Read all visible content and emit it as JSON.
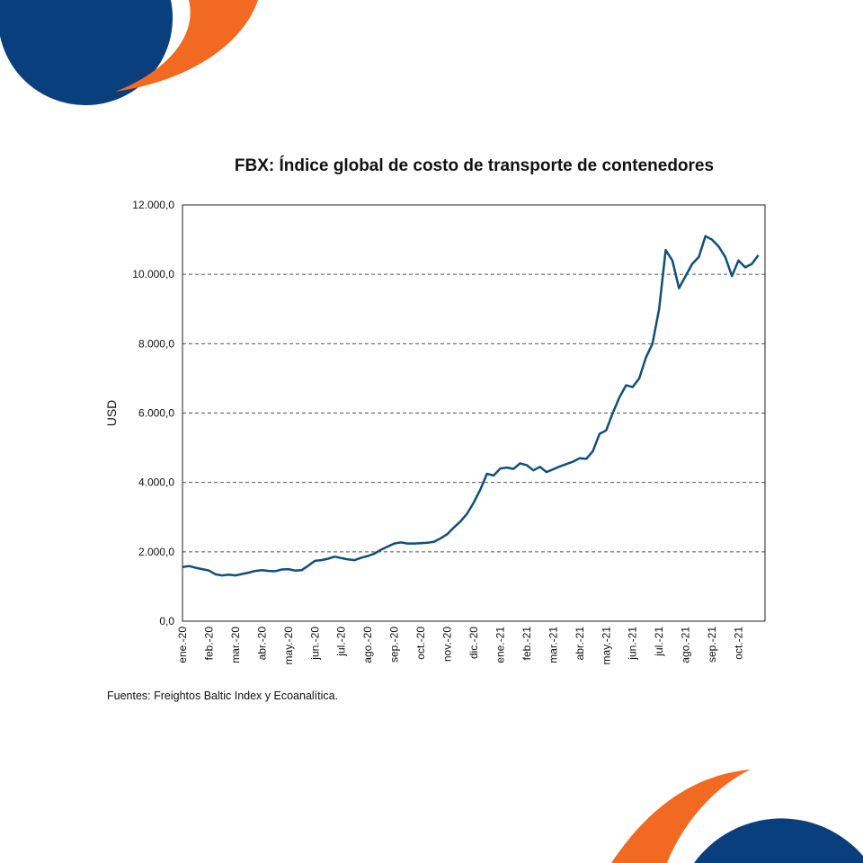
{
  "colors": {
    "navy": "#0a3f7d",
    "orange": "#f26a21",
    "line": "#0f4f7a",
    "grid": "#555555"
  },
  "footer": {
    "source": "Fuentes: Freightos Baltic Index y Ecoanalítica."
  },
  "chart_data": {
    "type": "line",
    "title": "FBX: Índice global de costo de transporte de contenedores",
    "ylabel": "USD",
    "xlabel": "",
    "ylim": [
      0,
      12000
    ],
    "yticks": [
      0,
      2000,
      4000,
      6000,
      8000,
      10000,
      12000
    ],
    "ytick_labels": [
      "0,0",
      "2.000,0",
      "4.000,0",
      "6.000,0",
      "8.000,0",
      "10.000,0",
      "12.000,0"
    ],
    "grid": "horizontal dashed",
    "xtick_labels": [
      "ene.-20",
      "feb.-20",
      "mar.-20",
      "abr.-20",
      "may.-20",
      "jun.-20",
      "jul.-20",
      "ago.-20",
      "sep.-20",
      "oct.-20",
      "nov.-20",
      "dic.-20",
      "ene.-21",
      "feb.-21",
      "mar.-21",
      "abr.-21",
      "may.-21",
      "jun.-21",
      "jul.-21",
      "ago.-21",
      "sep.-21",
      "oct.-21"
    ],
    "x": [
      0,
      0.25,
      0.5,
      0.75,
      1,
      1.25,
      1.5,
      1.75,
      2,
      2.25,
      2.5,
      2.75,
      3,
      3.25,
      3.5,
      3.75,
      4,
      4.25,
      4.5,
      4.75,
      5,
      5.25,
      5.5,
      5.75,
      6,
      6.25,
      6.5,
      6.75,
      7,
      7.25,
      7.5,
      7.75,
      8,
      8.25,
      8.5,
      8.75,
      9,
      9.25,
      9.5,
      9.75,
      10,
      10.25,
      10.5,
      10.75,
      11,
      11.25,
      11.5,
      11.75,
      12,
      12.25,
      12.5,
      12.75,
      13,
      13.25,
      13.5,
      13.75,
      14,
      14.25,
      14.5,
      14.75,
      15,
      15.25,
      15.5,
      15.75,
      16,
      16.25,
      16.5,
      16.75,
      17,
      17.25,
      17.5,
      17.75,
      18,
      18.25,
      18.5,
      18.75,
      19,
      19.25,
      19.5,
      19.75,
      20,
      20.25,
      20.5,
      20.75,
      21,
      21.25,
      21.5,
      21.75
    ],
    "series": [
      {
        "values": [
          1560,
          1590,
          1540,
          1500,
          1460,
          1350,
          1320,
          1340,
          1320,
          1360,
          1400,
          1450,
          1470,
          1450,
          1440,
          1490,
          1500,
          1460,
          1470,
          1600,
          1740,
          1760,
          1800,
          1860,
          1820,
          1780,
          1760,
          1830,
          1880,
          1950,
          2060,
          2150,
          2240,
          2270,
          2240,
          2240,
          2250,
          2260,
          2290,
          2390,
          2510,
          2700,
          2880,
          3100,
          3420,
          3800,
          4250,
          4200,
          4400,
          4430,
          4390,
          4550,
          4500,
          4350,
          4450,
          4300,
          4380,
          4460,
          4530,
          4600,
          4700,
          4680,
          4900,
          5400,
          5500,
          6000,
          6450,
          6800,
          6750,
          7000,
          7600,
          8000,
          9000,
          10700,
          10400,
          9600,
          9950,
          10300,
          10500,
          11100,
          11000,
          10800,
          10500,
          9950,
          10400,
          10200,
          10300,
          10550
        ]
      }
    ]
  }
}
